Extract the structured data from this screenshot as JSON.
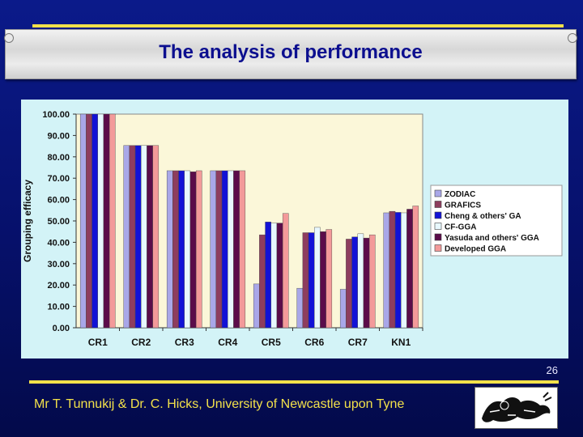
{
  "slide": {
    "title": "The analysis of performance",
    "page_number": "26",
    "footer": "Mr T. Tunnukij & Dr. C. Hicks, University of Newcastle upon Tyne",
    "logo_icon": "newcastle-lion-crest-icon",
    "colors": {
      "background": "#0b1a8a",
      "accent_line": "#f3e14a",
      "title": "#0c0f8f",
      "chart_panel": "#d3f3f7",
      "plot_area": "#fbf7d9"
    }
  },
  "chart_data": {
    "type": "bar",
    "ylabel": "Grouping efficacy",
    "xlabel": "",
    "ylim": [
      0,
      100
    ],
    "yticks": [
      "0.00",
      "10.00",
      "20.00",
      "30.00",
      "40.00",
      "50.00",
      "60.00",
      "70.00",
      "80.00",
      "90.00",
      "100.00"
    ],
    "grid": false,
    "legend_position": "right",
    "categories": [
      "CR1",
      "CR2",
      "CR3",
      "CR4",
      "CR5",
      "CR6",
      "CR7",
      "KN1"
    ],
    "series": [
      {
        "name": "ZODIAC",
        "color": "#a9a7e8",
        "values": [
          100,
          85.3,
          73.5,
          73.5,
          20.5,
          18.5,
          18,
          53.8
        ]
      },
      {
        "name": "GRAFICS",
        "color": "#8e3d5e",
        "values": [
          100,
          85.3,
          73.5,
          73.5,
          43.5,
          44.5,
          41.5,
          54.5
        ]
      },
      {
        "name": "Cheng & others' GA",
        "color": "#1212d6",
        "values": [
          100,
          85.3,
          73.5,
          73.5,
          49.5,
          44.5,
          42.5,
          54
        ]
      },
      {
        "name": "CF-GGA",
        "color": "#e8f8ff",
        "values": [
          100,
          85.3,
          73.5,
          73.5,
          49,
          47,
          44,
          53.8
        ]
      },
      {
        "name": "Yasuda and others' GGA",
        "color": "#5b0c4a",
        "values": [
          100,
          85.3,
          73,
          73.5,
          49,
          45,
          42,
          55.5
        ]
      },
      {
        "name": "Developed GGA",
        "color": "#f39a9a",
        "values": [
          100,
          85.3,
          73.5,
          73.5,
          53.5,
          46,
          43.5,
          57
        ]
      }
    ]
  }
}
